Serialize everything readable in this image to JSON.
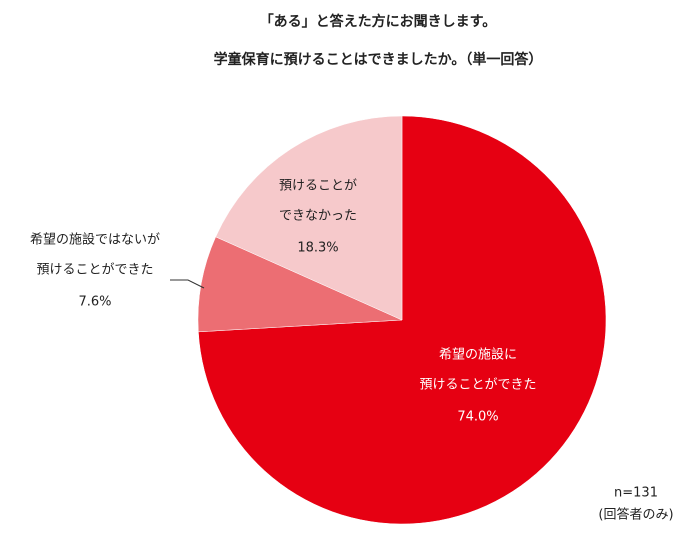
{
  "chart_data": {
    "type": "pie",
    "title": "「ある」と答えた方にお聞きします。",
    "subtitle": "学童保育に預けることはできましたか。（単一回答）",
    "categories": [
      [
        "希望の施設に",
        "預けることができた"
      ],
      [
        "希望の施設ではないが",
        "預けることができた"
      ],
      [
        "預けることが",
        "できなかった"
      ]
    ],
    "values": [
      74.0,
      7.6,
      18.3
    ],
    "value_labels": [
      "74.0%",
      "7.6%",
      "18.3%"
    ],
    "colors": [
      "#e60012",
      "#ec6e73",
      "#f6c9cb"
    ],
    "annotations": [
      "n=131",
      "(回答者のみ)"
    ]
  }
}
